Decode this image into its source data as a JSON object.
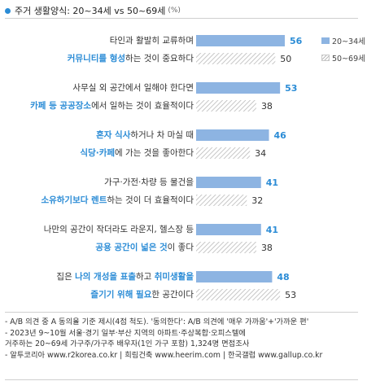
{
  "title": {
    "text": "주거 생활양식: 20~34세 vs 50~69세",
    "unit": "(%)"
  },
  "colors": {
    "accent": "#2b8cd6",
    "bar_series1": "#8db4e2",
    "bar_series2_hatch": "#b9b9b9",
    "value_series1": "#2b8cd6",
    "value_series2": "#333333"
  },
  "chart_data": {
    "type": "bar",
    "orientation": "horizontal",
    "title": "주거 생활양식: 20~34세 vs 50~69세",
    "unit": "(%)",
    "legend_placement": "top-right",
    "grid": false,
    "xlim": [
      0,
      60
    ],
    "categories": [
      {
        "line1": [
          {
            "t": "타인과 활발히 교류하며"
          }
        ],
        "line2": [
          {
            "t": "커뮤니티를 형성",
            "hl": true
          },
          {
            "t": "하는 것이 중요하다"
          }
        ]
      },
      {
        "line1": [
          {
            "t": "사무실 외 공간에서 일해야 한다면"
          }
        ],
        "line2": [
          {
            "t": "카페 등 공공장소",
            "hl": true
          },
          {
            "t": "에서 일하는 것이 효율적이다"
          }
        ]
      },
      {
        "line1": [
          {
            "t": "혼자 식사",
            "hl": true
          },
          {
            "t": "하거나 차 마실 때"
          }
        ],
        "line2": [
          {
            "t": "식당·카페",
            "hl": true
          },
          {
            "t": "에 가는 것을 좋아한다"
          }
        ]
      },
      {
        "line1": [
          {
            "t": "가구·가전·차량 등 물건을"
          }
        ],
        "line2": [
          {
            "t": "소유하기보다 렌트",
            "hl": true
          },
          {
            "t": "하는 것이 더 효율적이다"
          }
        ]
      },
      {
        "line1": [
          {
            "t": "나만의 공간이 작더라도 라운지, 헬스장 등"
          }
        ],
        "line2": [
          {
            "t": "공용 공간이 넓은 것",
            "hl": true
          },
          {
            "t": "이 좋다"
          }
        ]
      },
      {
        "line1": [
          {
            "t": "집은 "
          },
          {
            "t": "나의 개성을 표출",
            "hl": true
          },
          {
            "t": "하고 "
          },
          {
            "t": "취미생활을",
            "hl": true
          }
        ],
        "line2": [
          {
            "t": "즐기기 위해 필요",
            "hl": true
          },
          {
            "t": "한 공간이다"
          }
        ]
      }
    ],
    "series": [
      {
        "name": "20~34세",
        "values": [
          56,
          53,
          46,
          41,
          41,
          48
        ]
      },
      {
        "name": "50~69세",
        "values": [
          50,
          38,
          34,
          32,
          38,
          53
        ]
      }
    ]
  },
  "notes": [
    "- A/B 의견 중 A 동의율 기준 제시(4점 척도). '동의한다': A/B 의견에 '매우 가까움'+'가까운 편'",
    "- 2023년 9~10월 서울·경기 일부·부산 지역의 아파트·주상복합·오피스텔에",
    "   거주하는 20~69세 가구주/가구주 배우자(1인 가구 포함) 1,324명 면접조사",
    "- 알투코리아 www.r2korea.co.kr | 희림건축 www.heerim.com | 한국갤럽 www.gallup.co.kr"
  ]
}
